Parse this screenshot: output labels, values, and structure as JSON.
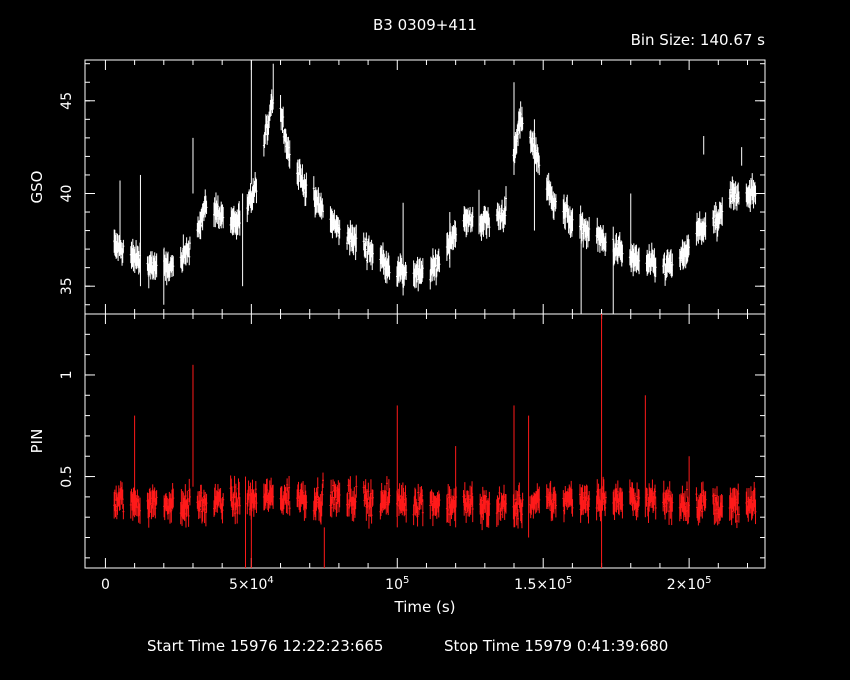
{
  "chart_data": {
    "type": "scatter",
    "title": "B3 0309+411",
    "subtitle": "Bin Size:  140.67  s",
    "xlabel": "Time (s)",
    "footer_start": "Start Time 15976 12:22:23:665",
    "footer_stop": "Stop Time 15979  0:41:39:680",
    "xlim": [
      -7000,
      226000
    ],
    "x_ticks": [
      {
        "v": 0,
        "parts": [
          "0"
        ]
      },
      {
        "v": 50000,
        "parts": [
          "5×10",
          "4"
        ]
      },
      {
        "v": 100000,
        "parts": [
          "10",
          "5"
        ]
      },
      {
        "v": 150000,
        "parts": [
          "1.5×10",
          "5"
        ]
      },
      {
        "v": 200000,
        "parts": [
          "2×10",
          "5"
        ]
      }
    ],
    "panels": [
      {
        "name": "GSO",
        "ylabel": "GSO",
        "color": "#ffffff",
        "ylim": [
          33.5,
          47.2
        ],
        "y_ticks": [
          35,
          40,
          45
        ],
        "y_ticklabels": [
          "35",
          "40",
          "45"
        ],
        "knots": [
          [
            3000,
            37.2
          ],
          [
            10000,
            36.5
          ],
          [
            17000,
            36.0
          ],
          [
            25000,
            36.0
          ],
          [
            30000,
            37.5
          ],
          [
            35000,
            39.5
          ],
          [
            42000,
            38.5
          ],
          [
            47000,
            38.5
          ],
          [
            52000,
            40.5
          ],
          [
            57000,
            45.0
          ],
          [
            60000,
            44.5
          ],
          [
            63000,
            42.0
          ],
          [
            70000,
            40.0
          ],
          [
            80000,
            38.0
          ],
          [
            90000,
            37.0
          ],
          [
            100000,
            35.8
          ],
          [
            108000,
            35.6
          ],
          [
            113000,
            36.0
          ],
          [
            118000,
            37.5
          ],
          [
            122000,
            38.5
          ],
          [
            127000,
            38.5
          ],
          [
            133000,
            38.5
          ],
          [
            137000,
            39.0
          ],
          [
            142000,
            44.0
          ],
          [
            147000,
            42.5
          ],
          [
            152000,
            40.0
          ],
          [
            160000,
            38.5
          ],
          [
            170000,
            37.5
          ],
          [
            180000,
            36.5
          ],
          [
            190000,
            36.0
          ],
          [
            197000,
            36.3
          ],
          [
            203000,
            38.0
          ],
          [
            210000,
            38.5
          ],
          [
            215000,
            40.0
          ],
          [
            220000,
            40.0
          ]
        ],
        "noise": 0.45,
        "err": 0.55,
        "spikes": [
          [
            5000,
            38.7,
            2.0
          ],
          [
            12000,
            38.0,
            3.0
          ],
          [
            20000,
            35.5,
            1.5
          ],
          [
            30000,
            41.5,
            1.5
          ],
          [
            50000,
            44.0,
            3.5
          ],
          [
            47000,
            37.5,
            2.5
          ],
          [
            57500,
            46.0,
            1.0
          ],
          [
            102000,
            37.0,
            2.5
          ],
          [
            147000,
            41.0,
            3.0
          ],
          [
            140000,
            43.5,
            2.5
          ],
          [
            163000,
            35.0,
            2.5
          ],
          [
            174000,
            35.0,
            2.0
          ],
          [
            205000,
            42.6,
            0.5
          ],
          [
            218000,
            42.0,
            0.5
          ],
          [
            118000,
            37.5,
            1.5
          ],
          [
            128000,
            39.0,
            1.2
          ],
          [
            180000,
            38.0,
            2.0
          ]
        ]
      },
      {
        "name": "PIN",
        "ylabel": "PIN",
        "color": "#ff1a1a",
        "ylim": [
          0.05,
          1.3
        ],
        "y_ticks": [
          0.5,
          1.0
        ],
        "y_ticklabels": [
          "0.5",
          "1"
        ],
        "knots": [
          [
            3000,
            0.38
          ],
          [
            30000,
            0.36
          ],
          [
            60000,
            0.4
          ],
          [
            100000,
            0.38
          ],
          [
            140000,
            0.35
          ],
          [
            160000,
            0.39
          ],
          [
            190000,
            0.38
          ],
          [
            220000,
            0.35
          ]
        ],
        "noise": 0.06,
        "err": 0.05,
        "spikes": [
          [
            30000,
            0.75,
            0.3
          ],
          [
            170000,
            0.85,
            0.8
          ],
          [
            100000,
            0.55,
            0.3
          ],
          [
            48000,
            0.2,
            0.3
          ],
          [
            50000,
            0.12,
            0.3
          ],
          [
            140000,
            0.55,
            0.3
          ],
          [
            145000,
            0.5,
            0.3
          ],
          [
            185000,
            0.6,
            0.3
          ],
          [
            10000,
            0.55,
            0.25
          ],
          [
            75000,
            0.1,
            0.15
          ],
          [
            120000,
            0.45,
            0.2
          ],
          [
            200000,
            0.45,
            0.15
          ]
        ]
      }
    ]
  }
}
